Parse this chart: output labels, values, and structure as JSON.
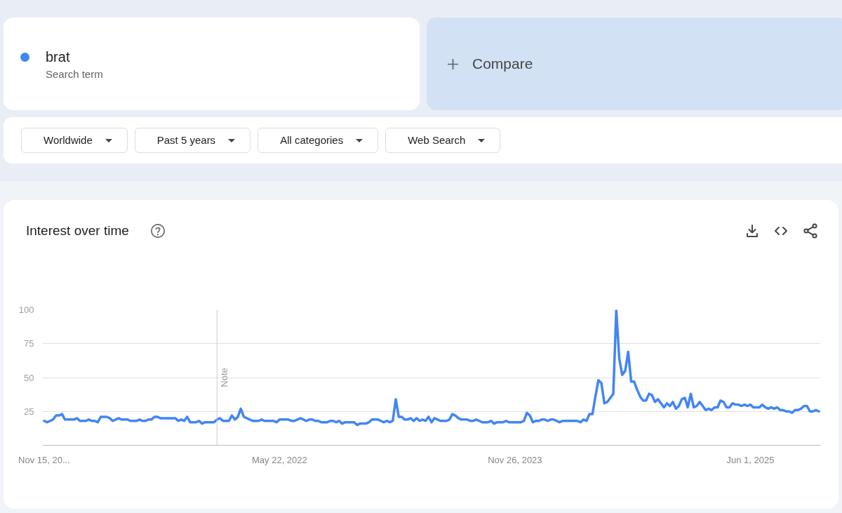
{
  "chart_data": {
    "type": "line",
    "title": "Interest over time",
    "legend": "top left",
    "legend_title": "Search term",
    "grid": "y",
    "annotations": [
      "Compare",
      "Worldwide",
      "Past 5 years",
      "All categories",
      "Web Search"
    ],
    "xlim": [
      "2020-11-11",
      "2025-11-13"
    ],
    "ylim": [
      0,
      100
    ],
    "yticks": [
      25,
      50,
      75,
      100
    ],
    "xticks": [
      {
        "value": "2020-11-15",
        "label": "Nov 15, 20..."
      },
      {
        "value": "2022-05-22",
        "label": "May 22, 2022"
      },
      {
        "value": "2023-11-26",
        "label": "Nov 26, 2023"
      },
      {
        "value": "2025-06-01",
        "label": "Jun 1, 2025"
      }
    ],
    "ref_lines": [
      {
        "axis": "x",
        "value": "2021-12-26",
        "label": "Note",
        "color": "#cccccc"
      }
    ],
    "x": [
      "2020-11-15",
      "2020-11-22",
      "2020-11-29",
      "2020-12-06",
      "2020-12-13",
      "2020-12-20",
      "2020-12-27",
      "2021-01-03",
      "2021-01-10",
      "2021-01-17",
      "2021-01-24",
      "2021-01-31",
      "2021-02-07",
      "2021-02-14",
      "2021-02-21",
      "2021-02-28",
      "2021-03-07",
      "2021-03-14",
      "2021-03-21",
      "2021-03-28",
      "2021-04-04",
      "2021-04-11",
      "2021-04-18",
      "2021-04-25",
      "2021-05-02",
      "2021-05-09",
      "2021-05-16",
      "2021-05-23",
      "2021-05-30",
      "2021-06-06",
      "2021-06-13",
      "2021-06-20",
      "2021-06-27",
      "2021-07-04",
      "2021-07-11",
      "2021-07-18",
      "2021-07-25",
      "2021-08-01",
      "2021-08-08",
      "2021-08-15",
      "2021-08-22",
      "2021-08-29",
      "2021-09-05",
      "2021-09-12",
      "2021-09-19",
      "2021-09-26",
      "2021-10-03",
      "2021-10-10",
      "2021-10-17",
      "2021-10-24",
      "2021-10-31",
      "2021-11-07",
      "2021-11-14",
      "2021-11-21",
      "2021-11-28",
      "2021-12-05",
      "2021-12-12",
      "2021-12-19",
      "2021-12-26",
      "2022-01-02",
      "2022-01-09",
      "2022-01-16",
      "2022-01-23",
      "2022-01-30",
      "2022-02-06",
      "2022-02-13",
      "2022-02-20",
      "2022-02-27",
      "2022-03-06",
      "2022-03-13",
      "2022-03-20",
      "2022-03-27",
      "2022-04-03",
      "2022-04-10",
      "2022-04-17",
      "2022-04-24",
      "2022-05-01",
      "2022-05-08",
      "2022-05-15",
      "2022-05-22",
      "2022-05-29",
      "2022-06-05",
      "2022-06-12",
      "2022-06-19",
      "2022-06-26",
      "2022-07-03",
      "2022-07-10",
      "2022-07-17",
      "2022-07-24",
      "2022-07-31",
      "2022-08-07",
      "2022-08-14",
      "2022-08-21",
      "2022-08-28",
      "2022-09-04",
      "2022-09-11",
      "2022-09-18",
      "2022-09-25",
      "2022-10-02",
      "2022-10-09",
      "2022-10-16",
      "2022-10-23",
      "2022-10-30",
      "2022-11-06",
      "2022-11-13",
      "2022-11-20",
      "2022-11-27",
      "2022-12-04",
      "2022-12-11",
      "2022-12-18",
      "2022-12-25",
      "2023-01-01",
      "2023-01-08",
      "2023-01-15",
      "2023-01-22",
      "2023-01-29",
      "2023-02-05",
      "2023-02-12",
      "2023-02-19",
      "2023-02-26",
      "2023-03-05",
      "2023-03-12",
      "2023-03-19",
      "2023-03-26",
      "2023-04-02",
      "2023-04-09",
      "2023-04-16",
      "2023-04-23",
      "2023-04-30",
      "2023-05-07",
      "2023-05-14",
      "2023-05-21",
      "2023-05-28",
      "2023-06-04",
      "2023-06-11",
      "2023-06-18",
      "2023-06-25",
      "2023-07-02",
      "2023-07-09",
      "2023-07-16",
      "2023-07-23",
      "2023-07-30",
      "2023-08-06",
      "2023-08-13",
      "2023-08-20",
      "2023-08-27",
      "2023-09-03",
      "2023-09-10",
      "2023-09-17",
      "2023-09-24",
      "2023-10-01",
      "2023-10-08",
      "2023-10-15",
      "2023-10-22",
      "2023-10-29",
      "2023-11-05",
      "2023-11-12",
      "2023-11-19",
      "2023-11-26",
      "2023-12-03",
      "2023-12-10",
      "2023-12-17",
      "2023-12-24",
      "2023-12-31",
      "2024-01-07",
      "2024-01-14",
      "2024-01-21",
      "2024-01-28",
      "2024-02-04",
      "2024-02-11",
      "2024-02-18",
      "2024-02-25",
      "2024-03-03",
      "2024-03-10",
      "2024-03-17",
      "2024-03-24",
      "2024-03-31",
      "2024-04-07",
      "2024-04-14",
      "2024-04-21",
      "2024-04-28",
      "2024-05-05",
      "2024-05-12",
      "2024-05-19",
      "2024-05-26",
      "2024-06-02",
      "2024-06-09",
      "2024-06-16",
      "2024-06-23",
      "2024-06-30",
      "2024-07-07",
      "2024-07-14",
      "2024-07-21",
      "2024-07-28",
      "2024-08-04",
      "2024-08-11",
      "2024-08-18",
      "2024-08-25",
      "2024-09-01",
      "2024-09-08",
      "2024-09-15",
      "2024-09-22",
      "2024-09-29",
      "2024-10-06",
      "2024-10-13",
      "2024-10-20",
      "2024-10-27",
      "2024-11-03",
      "2024-11-10",
      "2024-11-17",
      "2024-11-24",
      "2024-12-01",
      "2024-12-08",
      "2024-12-15",
      "2024-12-22",
      "2024-12-29",
      "2025-01-05",
      "2025-01-12",
      "2025-01-19",
      "2025-01-26",
      "2025-02-02",
      "2025-02-09",
      "2025-02-16",
      "2025-02-23",
      "2025-03-02",
      "2025-03-09",
      "2025-03-16",
      "2025-03-23",
      "2025-03-30",
      "2025-04-06",
      "2025-04-13",
      "2025-04-20",
      "2025-04-27",
      "2025-05-04",
      "2025-05-11",
      "2025-05-18",
      "2025-05-25",
      "2025-06-01",
      "2025-06-08",
      "2025-06-15",
      "2025-06-22",
      "2025-06-29",
      "2025-07-06",
      "2025-07-13",
      "2025-07-20",
      "2025-07-27",
      "2025-08-03",
      "2025-08-10",
      "2025-08-17",
      "2025-08-24",
      "2025-08-31",
      "2025-09-07",
      "2025-09-14",
      "2025-09-21",
      "2025-09-28",
      "2025-10-05",
      "2025-10-12",
      "2025-10-19",
      "2025-10-26",
      "2025-11-02",
      "2025-11-09"
    ],
    "series": [
      {
        "name": "brat",
        "color": "#4285f4",
        "values": [
          18,
          17,
          18,
          19,
          22,
          22,
          23,
          19,
          19,
          19,
          19,
          20,
          18,
          18,
          18,
          19,
          18,
          18,
          17,
          21,
          21,
          21,
          20,
          18,
          19,
          20,
          19,
          19,
          19,
          18,
          18,
          18,
          19,
          18,
          18,
          19,
          19,
          21,
          21,
          20,
          20,
          20,
          20,
          20,
          20,
          18,
          19,
          18,
          21,
          17,
          17,
          17,
          18,
          16,
          17,
          17,
          17,
          17,
          19,
          20,
          18,
          18,
          18,
          22,
          19,
          21,
          27,
          21,
          20,
          19,
          18,
          18,
          18,
          19,
          18,
          18,
          18,
          18,
          17,
          19,
          19,
          19,
          19,
          18,
          18,
          19,
          20,
          19,
          18,
          19,
          19,
          18,
          18,
          17,
          17,
          17,
          18,
          18,
          17,
          18,
          16,
          17,
          17,
          17,
          17,
          15,
          16,
          16,
          16,
          17,
          19,
          19,
          19,
          18,
          17,
          18,
          17,
          18,
          34,
          21,
          21,
          19,
          19,
          20,
          18,
          20,
          18,
          19,
          18,
          21,
          17,
          20,
          19,
          18,
          18,
          18,
          19,
          23,
          22,
          20,
          19,
          19,
          19,
          18,
          18,
          19,
          18,
          17,
          17,
          17,
          18,
          16,
          17,
          17,
          17,
          18,
          17,
          17,
          17,
          17,
          17,
          18,
          24,
          22,
          17,
          18,
          18,
          19,
          19,
          18,
          19,
          19,
          18,
          17,
          18,
          18,
          18,
          18,
          18,
          18,
          17,
          19,
          18,
          23,
          23,
          36,
          48,
          46,
          31,
          32,
          35,
          38,
          100,
          64,
          52,
          55,
          69,
          47,
          47,
          41,
          36,
          33,
          33,
          38,
          37,
          32,
          34,
          31,
          28,
          31,
          29,
          32,
          27,
          29,
          34,
          35,
          28,
          38,
          28,
          29,
          32,
          29,
          26,
          27,
          26,
          28,
          28,
          33,
          32,
          28,
          28,
          31,
          30,
          30,
          29,
          30,
          29,
          30,
          28,
          28,
          28,
          30,
          28,
          27,
          28,
          27,
          28,
          26,
          26,
          25,
          25,
          24,
          26,
          26,
          27,
          29,
          29,
          25,
          25,
          26,
          25
        ]
      }
    ]
  }
}
